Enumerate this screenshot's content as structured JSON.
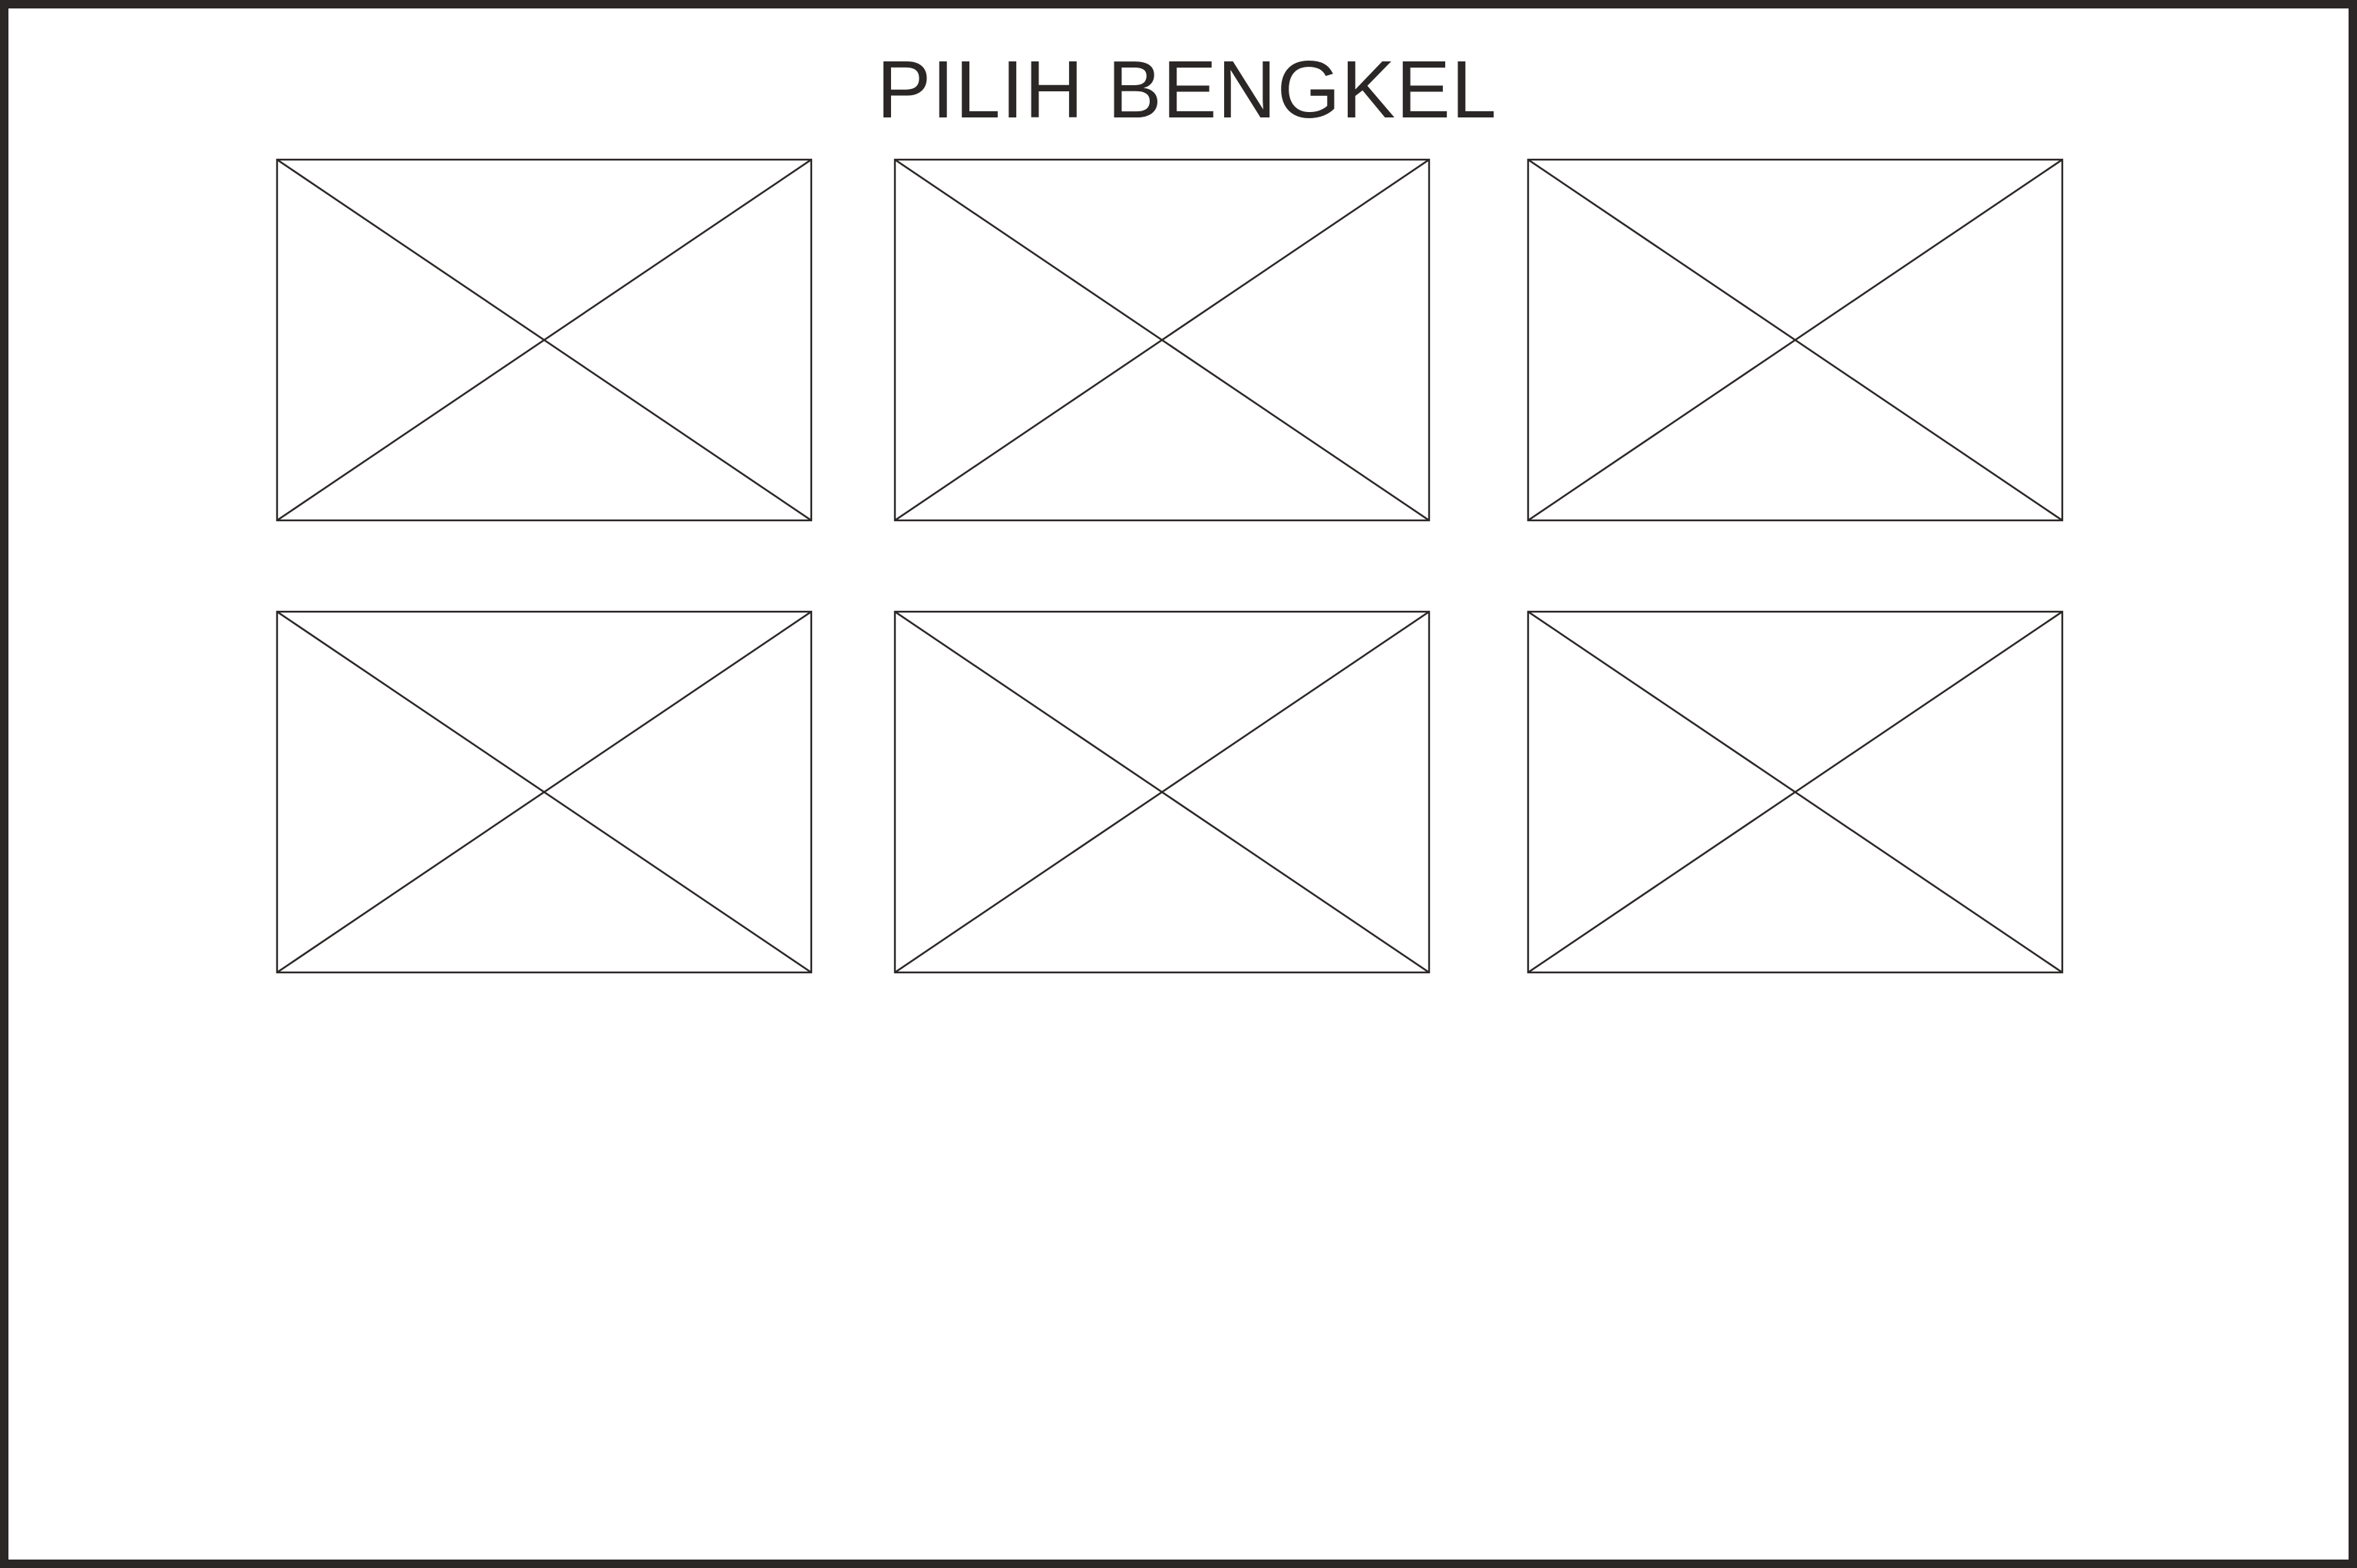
{
  "page": {
    "title": "PILIH BENGKEL"
  },
  "colors": {
    "ink": "#2b2726",
    "background": "#ffffff"
  },
  "workshops": {
    "image_icon": "image-placeholder-icon",
    "count": 6
  }
}
